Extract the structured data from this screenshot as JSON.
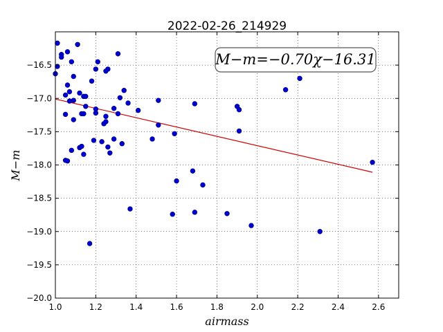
{
  "chart_data": {
    "type": "scatter",
    "title": "2022-02-26_214929",
    "xlabel": "airmass",
    "ylabel": "M−m",
    "xlim": [
      1.0,
      2.7
    ],
    "ylim": [
      -20.0,
      -16.0
    ],
    "y_inverted": true,
    "grid": true,
    "x_ticks": [
      1.0,
      1.2,
      1.4,
      1.6,
      1.8,
      2.0,
      2.2,
      2.4,
      2.6
    ],
    "x_tick_labels": [
      "1.0",
      "1.2",
      "1.4",
      "1.6",
      "1.8",
      "2.0",
      "2.2",
      "2.4",
      "2.6"
    ],
    "y_ticks": [
      -16.5,
      -17.0,
      -17.5,
      -18.0,
      -18.5,
      -19.0,
      -19.5,
      -20.0
    ],
    "y_tick_labels": [
      "−16.5",
      "−17.0",
      "−17.5",
      "−18.0",
      "−18.5",
      "−19.0",
      "−19.5",
      "−20.0"
    ],
    "annotation": "M−m=−0.70χ−16.31",
    "annotation_position": "top-right",
    "fit": {
      "slope": -0.7,
      "intercept": -16.31,
      "x_range": [
        1.0,
        2.57
      ],
      "color": "#d00000"
    },
    "point_color": "#0000cc",
    "series": [
      {
        "points": [
          [
            1.0,
            -16.63
          ],
          [
            1.01,
            -16.17
          ],
          [
            1.01,
            -16.52
          ],
          [
            1.03,
            -16.34
          ],
          [
            1.03,
            -16.38
          ],
          [
            1.05,
            -16.95
          ],
          [
            1.05,
            -17.24
          ],
          [
            1.05,
            -17.93
          ],
          [
            1.06,
            -16.3
          ],
          [
            1.06,
            -16.8
          ],
          [
            1.06,
            -17.94
          ],
          [
            1.07,
            -16.9
          ],
          [
            1.07,
            -17.04
          ],
          [
            1.08,
            -17.78
          ],
          [
            1.08,
            -16.45
          ],
          [
            1.09,
            -17.03
          ],
          [
            1.09,
            -17.32
          ],
          [
            1.09,
            -16.67
          ],
          [
            1.11,
            -16.19
          ],
          [
            1.12,
            -16.92
          ],
          [
            1.12,
            -17.74
          ],
          [
            1.13,
            -17.23
          ],
          [
            1.13,
            -17.72
          ],
          [
            1.14,
            -17.23
          ],
          [
            1.14,
            -17.84
          ],
          [
            1.14,
            -16.97
          ],
          [
            1.15,
            -16.97
          ],
          [
            1.15,
            -17.12
          ],
          [
            1.17,
            -19.18
          ],
          [
            1.18,
            -16.74
          ],
          [
            1.19,
            -17.63
          ],
          [
            1.2,
            -17.16
          ],
          [
            1.2,
            -17.22
          ],
          [
            1.2,
            -16.56
          ],
          [
            1.21,
            -16.45
          ],
          [
            1.23,
            -17.65
          ],
          [
            1.24,
            -17.38
          ],
          [
            1.25,
            -17.35
          ],
          [
            1.25,
            -17.27
          ],
          [
            1.25,
            -16.59
          ],
          [
            1.26,
            -16.56
          ],
          [
            1.26,
            -17.73
          ],
          [
            1.27,
            -17.82
          ],
          [
            1.29,
            -17.15
          ],
          [
            1.29,
            -17.61
          ],
          [
            1.31,
            -16.33
          ],
          [
            1.31,
            -17.23
          ],
          [
            1.32,
            -16.99
          ],
          [
            1.33,
            -17.68
          ],
          [
            1.34,
            -16.88
          ],
          [
            1.36,
            -17.07
          ],
          [
            1.37,
            -18.66
          ],
          [
            1.41,
            -17.18
          ],
          [
            1.48,
            -17.61
          ],
          [
            1.51,
            -17.03
          ],
          [
            1.51,
            -17.4
          ],
          [
            1.58,
            -18.74
          ],
          [
            1.59,
            -17.53
          ],
          [
            1.6,
            -18.24
          ],
          [
            1.68,
            -18.09
          ],
          [
            1.69,
            -17.08
          ],
          [
            1.69,
            -18.71
          ],
          [
            1.73,
            -18.3
          ],
          [
            1.85,
            -18.73
          ],
          [
            1.9,
            -17.12
          ],
          [
            1.91,
            -17.17
          ],
          [
            1.91,
            -17.49
          ],
          [
            1.97,
            -18.91
          ],
          [
            2.14,
            -16.87
          ],
          [
            2.21,
            -16.7
          ],
          [
            2.31,
            -19.0
          ],
          [
            2.57,
            -17.96
          ]
        ]
      }
    ]
  }
}
